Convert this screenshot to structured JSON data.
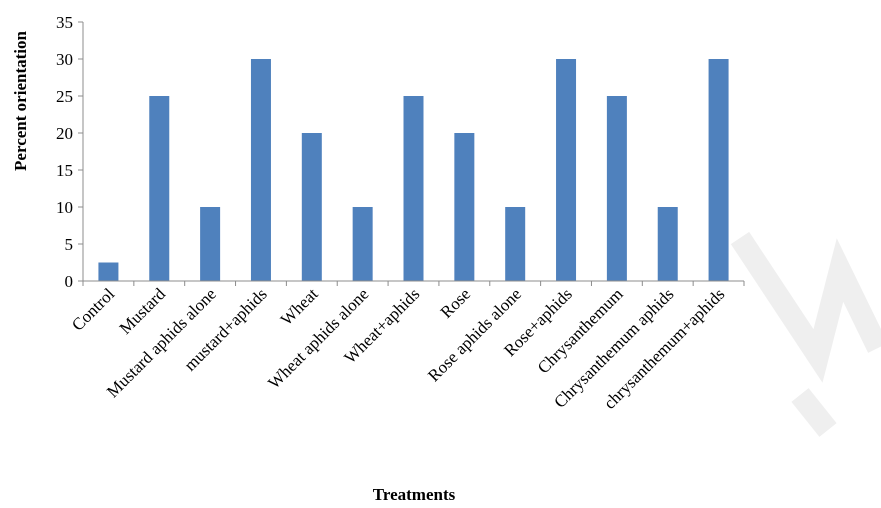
{
  "chart_data": {
    "type": "bar",
    "title": "",
    "xlabel": "Treatments",
    "ylabel": "Percent orientation",
    "ylim": [
      0,
      35
    ],
    "yticks": [
      0,
      5,
      10,
      15,
      20,
      25,
      30,
      35
    ],
    "grid": false,
    "legend": "none",
    "bar_color": "#4f81bd",
    "categories": [
      "Control",
      "Mustard",
      "Mustard aphids alone",
      "mustard+aphids",
      "Wheat",
      "Wheat aphids alone",
      "Wheat+aphids",
      "Rose",
      "Rose aphids alone",
      "Rose+aphids",
      "Chrysanthemum",
      "Chrysanthemum aphids",
      "chrysanthemum+aphids"
    ],
    "values": [
      2.5,
      25,
      10,
      30,
      20,
      10,
      25,
      20,
      10,
      30,
      25,
      10,
      30
    ]
  }
}
